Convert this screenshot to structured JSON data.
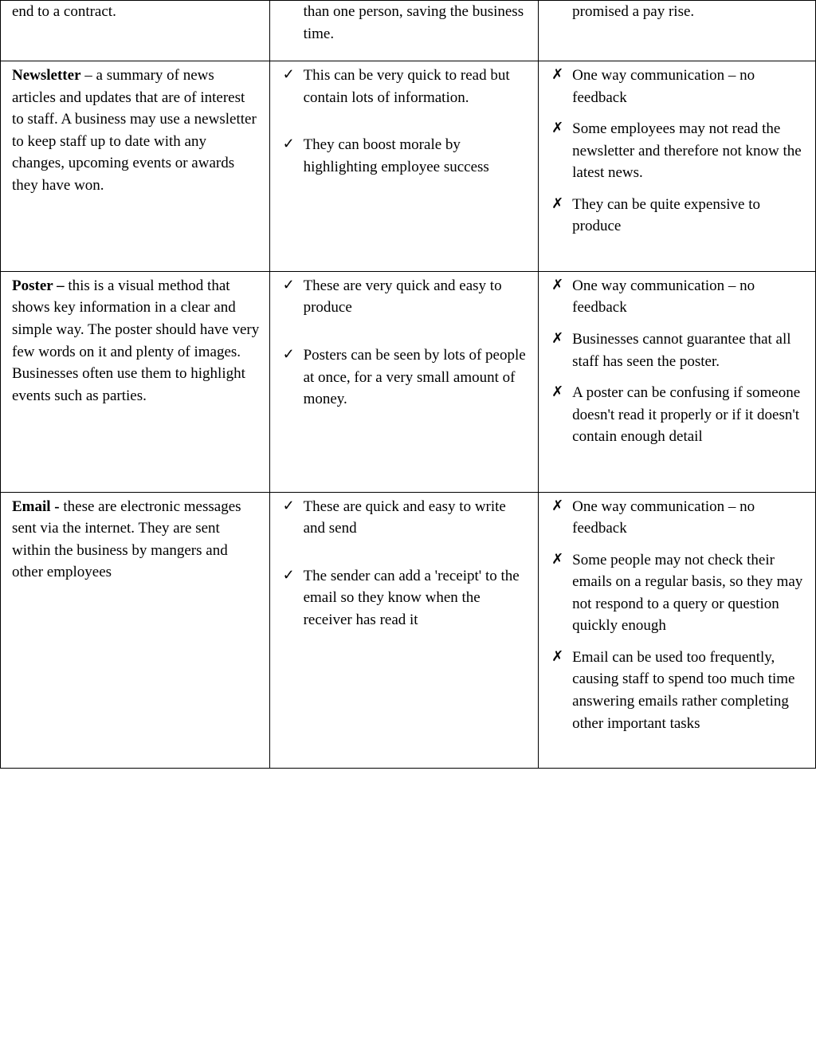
{
  "checkMark": "✓",
  "crossMark": "✗",
  "rows": [
    {
      "method": {
        "term": "",
        "text": "end to a contract."
      },
      "pros": [
        "than one person, saving the business time."
      ],
      "cons": [
        "promised a pay rise."
      ],
      "fragment": true
    },
    {
      "method": {
        "term": "Newsletter",
        "text": " – a summary of news articles and updates that are of interest to staff. A business may use a newsletter to keep staff up to date with any changes, upcoming events or awards they have won."
      },
      "pros": [
        "This can be very quick to read but contain lots of information.",
        "They can boost morale by highlighting employee success"
      ],
      "cons": [
        "One way communication – no feedback",
        "Some employees may not read the newsletter and therefore not know the latest news.",
        "They can be quite expensive to produce"
      ]
    },
    {
      "method": {
        "term": "Poster – ",
        "text": "this is a visual method that shows key information in a clear and simple way. The poster should have very few words on it and plenty of images. Businesses often use them to highlight events such as parties."
      },
      "pros": [
        "These are very quick and easy to produce",
        "Posters can be seen by lots of people at once, for a very small amount of money."
      ],
      "cons": [
        "One way communication – no feedback",
        "Businesses cannot guarantee that all staff has seen the poster.",
        "A poster can be confusing if someone doesn't read it properly or if it doesn't contain enough detail"
      ],
      "extraBottom": true
    },
    {
      "method": {
        "term": "Email - ",
        "text": "these are electronic messages sent via the internet. They are sent within the business by mangers and other employees"
      },
      "pros": [
        "These are quick and easy to write and send",
        "The sender can add a 'receipt' to the email so they know when the receiver has read it"
      ],
      "cons": [
        "One way communication – no feedback",
        "Some people may not check their emails on a regular basis, so they may not respond to a query or question quickly enough",
        "Email can be used too frequently, causing staff to spend too much time answering emails rather completing other important tasks"
      ]
    }
  ]
}
